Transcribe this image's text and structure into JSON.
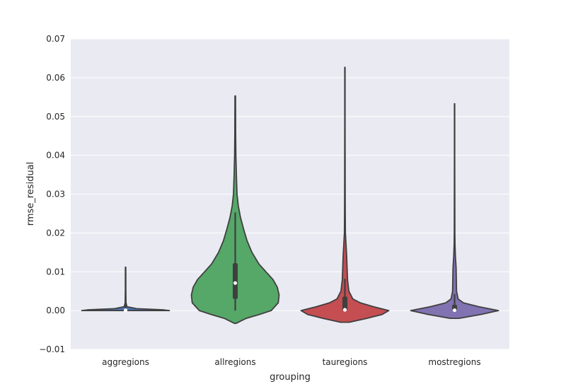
{
  "chart_data": {
    "type": "violin",
    "title": "",
    "xlabel": "grouping",
    "ylabel": "rmse_residual",
    "ylim": [
      -0.01,
      0.07
    ],
    "yticks": [
      -0.01,
      0.0,
      0.01,
      0.02,
      0.03,
      0.04,
      0.05,
      0.06,
      0.07
    ],
    "ytick_labels": [
      "−0.01",
      "0.00",
      "0.01",
      "0.02",
      "0.03",
      "0.04",
      "0.05",
      "0.06",
      "0.07"
    ],
    "grid": true,
    "background_color": "#eaeaf2",
    "categories": [
      "aggregions",
      "allregions",
      "tauregions",
      "mostregions"
    ],
    "violins": [
      {
        "category": "aggregions",
        "color": "#4c72b0",
        "whisker": [
          0.0,
          0.0112
        ],
        "box": [
          0.0,
          0.0002
        ],
        "median": 0.0001,
        "density": [
          [
            0.0,
            1.0
          ],
          [
            0.0002,
            0.85
          ],
          [
            0.0005,
            0.25
          ],
          [
            0.001,
            0.03
          ],
          [
            0.002,
            0.01
          ],
          [
            0.005,
            0.005
          ],
          [
            0.0112,
            0.003
          ]
        ]
      },
      {
        "category": "allregions",
        "color": "#55a868",
        "whisker": [
          0.0,
          0.0253
        ],
        "box": [
          0.003,
          0.0122
        ],
        "median": 0.0071,
        "density": [
          [
            -0.0033,
            0.02
          ],
          [
            -0.002,
            0.25
          ],
          [
            -0.001,
            0.55
          ],
          [
            0.0,
            0.82
          ],
          [
            0.002,
            0.98
          ],
          [
            0.004,
            1.0
          ],
          [
            0.006,
            0.96
          ],
          [
            0.008,
            0.86
          ],
          [
            0.01,
            0.7
          ],
          [
            0.012,
            0.54
          ],
          [
            0.015,
            0.38
          ],
          [
            0.018,
            0.27
          ],
          [
            0.021,
            0.19
          ],
          [
            0.024,
            0.12
          ],
          [
            0.027,
            0.07
          ],
          [
            0.03,
            0.04
          ],
          [
            0.035,
            0.025
          ],
          [
            0.04,
            0.015
          ],
          [
            0.045,
            0.01
          ],
          [
            0.05,
            0.008
          ],
          [
            0.0553,
            0.006
          ]
        ]
      },
      {
        "category": "tauregions",
        "color": "#c44e52",
        "whisker": [
          0.0,
          0.0082
        ],
        "box": [
          0.0001,
          0.0036
        ],
        "median": 0.0002,
        "density": [
          [
            -0.003,
            0.1
          ],
          [
            -0.002,
            0.5
          ],
          [
            -0.001,
            0.85
          ],
          [
            0.0,
            1.0
          ],
          [
            0.001,
            0.65
          ],
          [
            0.002,
            0.35
          ],
          [
            0.003,
            0.18
          ],
          [
            0.005,
            0.09
          ],
          [
            0.008,
            0.06
          ],
          [
            0.011,
            0.05
          ],
          [
            0.014,
            0.04
          ],
          [
            0.017,
            0.025
          ],
          [
            0.02,
            0.012
          ],
          [
            0.025,
            0.008
          ],
          [
            0.03,
            0.006
          ],
          [
            0.04,
            0.005
          ],
          [
            0.05,
            0.004
          ],
          [
            0.0627,
            0.004
          ]
        ]
      },
      {
        "category": "mostregions",
        "color": "#8172b2",
        "whisker": [
          0.0,
          0.0043
        ],
        "box": [
          0.0001,
          0.0015
        ],
        "median": 0.0001,
        "density": [
          [
            -0.002,
            0.1
          ],
          [
            -0.001,
            0.6
          ],
          [
            0.0,
            1.0
          ],
          [
            0.001,
            0.55
          ],
          [
            0.002,
            0.2
          ],
          [
            0.003,
            0.08
          ],
          [
            0.005,
            0.045
          ],
          [
            0.008,
            0.04
          ],
          [
            0.011,
            0.035
          ],
          [
            0.014,
            0.02
          ],
          [
            0.017,
            0.01
          ],
          [
            0.02,
            0.007
          ],
          [
            0.03,
            0.005
          ],
          [
            0.04,
            0.004
          ],
          [
            0.0533,
            0.004
          ]
        ]
      }
    ]
  }
}
